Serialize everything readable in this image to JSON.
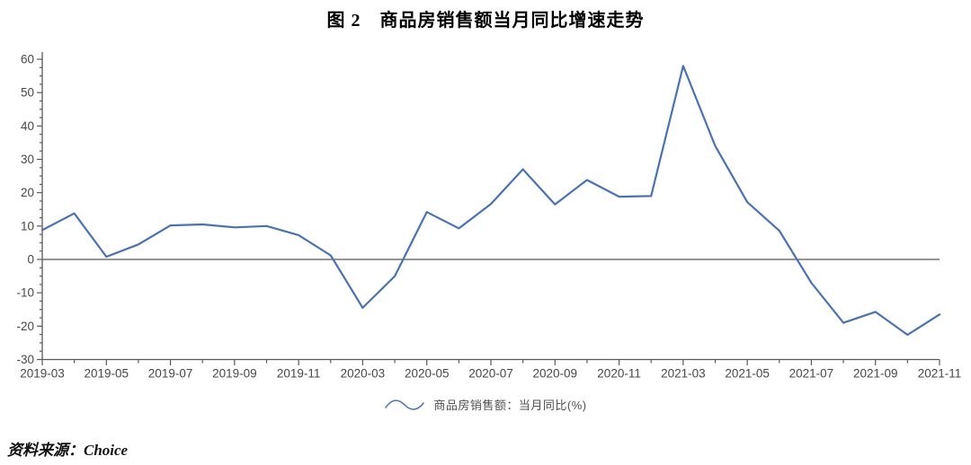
{
  "title": "图 2　商品房销售额当月同比增速走势",
  "source": "资料来源：Choice",
  "legend": {
    "label": "商品房销售额：当月同比(%)",
    "marker": "wave-line-icon"
  },
  "colors": {
    "line": "#4a72b2",
    "zero_line": "#707070",
    "axis": "#595959",
    "tick_label": "#474747"
  },
  "chart_data": {
    "type": "line",
    "title": "图 2　商品房销售额当月同比增速走势",
    "x": [
      "2019-03",
      "2019-04",
      "2019-05",
      "2019-06",
      "2019-07",
      "2019-08",
      "2019-09",
      "2019-10",
      "2019-11",
      "2019-12",
      "2020-03",
      "2020-04",
      "2020-05",
      "2020-06",
      "2020-07",
      "2020-08",
      "2020-09",
      "2020-10",
      "2020-11",
      "2020-12",
      "2021-03",
      "2021-04",
      "2021-05",
      "2021-06",
      "2021-07",
      "2021-08",
      "2021-09",
      "2021-10",
      "2021-11"
    ],
    "series": [
      {
        "name": "商品房销售额：当月同比(%)",
        "values": [
          8.8,
          13.8,
          0.8,
          4.5,
          10.2,
          10.5,
          9.6,
          10.0,
          7.3,
          1.2,
          -14.5,
          -5.0,
          14.2,
          9.3,
          16.6,
          27.0,
          16.5,
          23.8,
          18.8,
          19.0,
          58.0,
          34.0,
          17.2,
          8.6,
          -7.0,
          -19.0,
          -15.7,
          -22.6,
          -16.5
        ]
      }
    ],
    "x_tick_labels": [
      "2019-03",
      "2019-05",
      "2019-07",
      "2019-09",
      "2019-11",
      "2020-03",
      "2020-05",
      "2020-07",
      "2020-09",
      "2020-11",
      "2021-03",
      "2021-05",
      "2021-07",
      "2021-09",
      "2021-11"
    ],
    "x_label_every": 2,
    "ylim": [
      -30,
      60
    ],
    "y_ticks": [
      60,
      50,
      40,
      30,
      20,
      10,
      0,
      -10,
      -20,
      -30
    ],
    "y_minor_step": 2.5,
    "grid": false,
    "zero_line": true,
    "legend_position": "bottom-center",
    "xlabel": "",
    "ylabel": ""
  }
}
